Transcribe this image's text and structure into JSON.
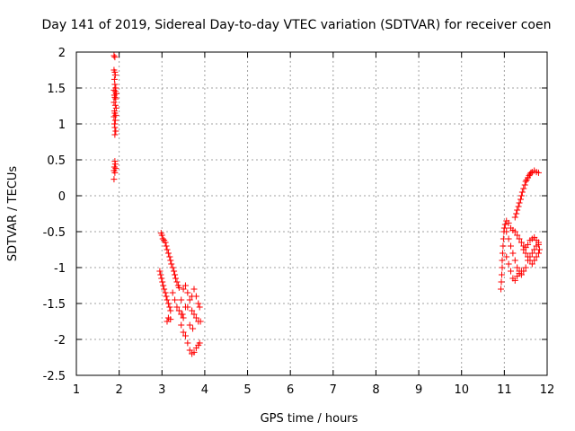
{
  "chart_data": {
    "type": "scatter",
    "title": "Day 141 of 2019, Sidereal Day-to-day VTEC variation (SDTVAR) for receiver coen",
    "xlabel": "GPS time / hours",
    "ylabel": "SDTVAR / TECUs",
    "xlim": [
      1,
      12
    ],
    "ylim": [
      -2.5,
      2
    ],
    "xticks": [
      "1",
      "2",
      "3",
      "4",
      "5",
      "6",
      "7",
      "8",
      "9",
      "10",
      "11",
      "12"
    ],
    "yticks": [
      "2",
      "1.5",
      "1",
      "0.5",
      "0",
      "-0.5",
      "-1",
      "-1.5",
      "-2",
      "-2.5"
    ],
    "grid": true,
    "marker": "+",
    "colors": {
      "series": "#ff0000",
      "grid": "#a0a0a0",
      "axis": "#000000"
    },
    "series": [
      {
        "name": "SDTVAR",
        "points": [
          [
            1.88,
            1.95
          ],
          [
            1.9,
            1.93
          ],
          [
            1.88,
            1.75
          ],
          [
            1.9,
            1.72
          ],
          [
            1.91,
            1.68
          ],
          [
            1.89,
            1.62
          ],
          [
            1.9,
            1.55
          ],
          [
            1.92,
            1.5
          ],
          [
            1.88,
            1.47
          ],
          [
            1.91,
            1.45
          ],
          [
            1.93,
            1.42
          ],
          [
            1.89,
            1.4
          ],
          [
            1.9,
            1.37
          ],
          [
            1.92,
            1.35
          ],
          [
            1.88,
            1.3
          ],
          [
            1.91,
            1.26
          ],
          [
            1.93,
            1.22
          ],
          [
            1.89,
            1.18
          ],
          [
            1.9,
            1.15
          ],
          [
            1.92,
            1.12
          ],
          [
            1.88,
            1.1
          ],
          [
            1.91,
            1.05
          ],
          [
            1.89,
            1.0
          ],
          [
            1.9,
            0.95
          ],
          [
            1.92,
            0.9
          ],
          [
            1.9,
            0.85
          ],
          [
            1.9,
            0.48
          ],
          [
            1.91,
            0.44
          ],
          [
            1.89,
            0.4
          ],
          [
            1.92,
            0.38
          ],
          [
            1.88,
            0.35
          ],
          [
            1.9,
            0.32
          ],
          [
            1.88,
            0.23
          ],
          [
            2.98,
            -0.52
          ],
          [
            3.0,
            -0.55
          ],
          [
            3.02,
            -0.6
          ],
          [
            3.05,
            -0.62
          ],
          [
            3.08,
            -0.65
          ],
          [
            3.1,
            -0.7
          ],
          [
            3.12,
            -0.75
          ],
          [
            3.15,
            -0.8
          ],
          [
            3.18,
            -0.85
          ],
          [
            3.2,
            -0.9
          ],
          [
            3.22,
            -0.95
          ],
          [
            3.25,
            -1.0
          ],
          [
            3.28,
            -1.05
          ],
          [
            3.3,
            -1.1
          ],
          [
            3.32,
            -1.15
          ],
          [
            3.35,
            -1.2
          ],
          [
            3.38,
            -1.25
          ],
          [
            3.4,
            -1.28
          ],
          [
            2.95,
            -1.05
          ],
          [
            2.97,
            -1.1
          ],
          [
            2.99,
            -1.15
          ],
          [
            3.01,
            -1.2
          ],
          [
            3.03,
            -1.25
          ],
          [
            3.05,
            -1.3
          ],
          [
            3.08,
            -1.35
          ],
          [
            3.1,
            -1.4
          ],
          [
            3.12,
            -1.45
          ],
          [
            3.15,
            -1.5
          ],
          [
            3.18,
            -1.55
          ],
          [
            3.2,
            -1.6
          ],
          [
            3.15,
            -1.7
          ],
          [
            3.12,
            -1.75
          ],
          [
            3.2,
            -1.72
          ],
          [
            3.25,
            -1.35
          ],
          [
            3.3,
            -1.45
          ],
          [
            3.35,
            -1.55
          ],
          [
            3.4,
            -1.6
          ],
          [
            3.45,
            -1.65
          ],
          [
            3.5,
            -1.7
          ],
          [
            3.45,
            -1.45
          ],
          [
            3.5,
            -1.3
          ],
          [
            3.55,
            -1.25
          ],
          [
            3.6,
            -1.35
          ],
          [
            3.65,
            -1.45
          ],
          [
            3.55,
            -1.55
          ],
          [
            3.48,
            -1.65
          ],
          [
            3.45,
            -1.8
          ],
          [
            3.5,
            -1.9
          ],
          [
            3.55,
            -1.95
          ],
          [
            3.6,
            -2.05
          ],
          [
            3.65,
            -2.15
          ],
          [
            3.7,
            -2.2
          ],
          [
            3.75,
            -2.18
          ],
          [
            3.8,
            -2.12
          ],
          [
            3.85,
            -2.08
          ],
          [
            3.88,
            -2.05
          ],
          [
            3.6,
            -1.55
          ],
          [
            3.7,
            -1.6
          ],
          [
            3.75,
            -1.65
          ],
          [
            3.8,
            -1.7
          ],
          [
            3.85,
            -1.75
          ],
          [
            3.9,
            -1.75
          ],
          [
            3.7,
            -1.4
          ],
          [
            3.75,
            -1.3
          ],
          [
            3.8,
            -1.4
          ],
          [
            3.85,
            -1.5
          ],
          [
            3.88,
            -1.55
          ],
          [
            3.65,
            -1.8
          ],
          [
            3.72,
            -1.85
          ],
          [
            10.92,
            -1.3
          ],
          [
            10.93,
            -1.2
          ],
          [
            10.94,
            -1.1
          ],
          [
            10.95,
            -1.0
          ],
          [
            10.95,
            -0.9
          ],
          [
            10.96,
            -0.8
          ],
          [
            10.97,
            -0.7
          ],
          [
            10.98,
            -0.6
          ],
          [
            10.99,
            -0.5
          ],
          [
            11.0,
            -0.45
          ],
          [
            11.02,
            -0.4
          ],
          [
            11.05,
            -0.5
          ],
          [
            11.1,
            -0.6
          ],
          [
            11.15,
            -0.7
          ],
          [
            11.2,
            -0.8
          ],
          [
            11.25,
            -0.9
          ],
          [
            11.3,
            -1.0
          ],
          [
            11.35,
            -1.05
          ],
          [
            11.4,
            -1.1
          ],
          [
            11.45,
            -1.05
          ],
          [
            11.5,
            -1.0
          ],
          [
            11.55,
            -0.9
          ],
          [
            11.6,
            -0.85
          ],
          [
            11.65,
            -0.8
          ],
          [
            11.7,
            -0.75
          ],
          [
            11.75,
            -0.7
          ],
          [
            11.8,
            -0.65
          ],
          [
            11.05,
            -0.85
          ],
          [
            11.1,
            -0.95
          ],
          [
            11.15,
            -1.05
          ],
          [
            11.2,
            -1.15
          ],
          [
            11.25,
            -1.18
          ],
          [
            11.3,
            -1.12
          ],
          [
            11.35,
            -1.08
          ],
          [
            11.4,
            -1.05
          ],
          [
            11.05,
            -0.35
          ],
          [
            11.1,
            -0.38
          ],
          [
            11.15,
            -0.45
          ],
          [
            11.2,
            -0.48
          ],
          [
            11.25,
            -0.5
          ],
          [
            11.3,
            -0.55
          ],
          [
            11.35,
            -0.6
          ],
          [
            11.4,
            -0.65
          ],
          [
            11.45,
            -0.7
          ],
          [
            11.5,
            -0.72
          ],
          [
            11.55,
            -0.68
          ],
          [
            11.6,
            -0.62
          ],
          [
            11.65,
            -0.6
          ],
          [
            11.7,
            -0.58
          ],
          [
            11.75,
            -0.62
          ],
          [
            11.8,
            -0.68
          ],
          [
            11.25,
            -0.3
          ],
          [
            11.28,
            -0.25
          ],
          [
            11.3,
            -0.2
          ],
          [
            11.33,
            -0.15
          ],
          [
            11.35,
            -0.1
          ],
          [
            11.38,
            -0.05
          ],
          [
            11.4,
            0.0
          ],
          [
            11.42,
            0.05
          ],
          [
            11.45,
            0.1
          ],
          [
            11.48,
            0.15
          ],
          [
            11.5,
            0.2
          ],
          [
            11.52,
            0.22
          ],
          [
            11.55,
            0.25
          ],
          [
            11.58,
            0.28
          ],
          [
            11.6,
            0.3
          ],
          [
            11.62,
            0.32
          ],
          [
            11.65,
            0.33
          ],
          [
            11.7,
            0.35
          ],
          [
            11.75,
            0.33
          ],
          [
            11.8,
            0.32
          ],
          [
            11.45,
            -0.75
          ],
          [
            11.5,
            -0.8
          ],
          [
            11.55,
            -0.85
          ],
          [
            11.6,
            -0.9
          ],
          [
            11.65,
            -0.95
          ],
          [
            11.7,
            -0.9
          ],
          [
            11.75,
            -0.85
          ],
          [
            11.8,
            -0.8
          ],
          [
            11.82,
            -0.75
          ]
        ]
      }
    ]
  }
}
